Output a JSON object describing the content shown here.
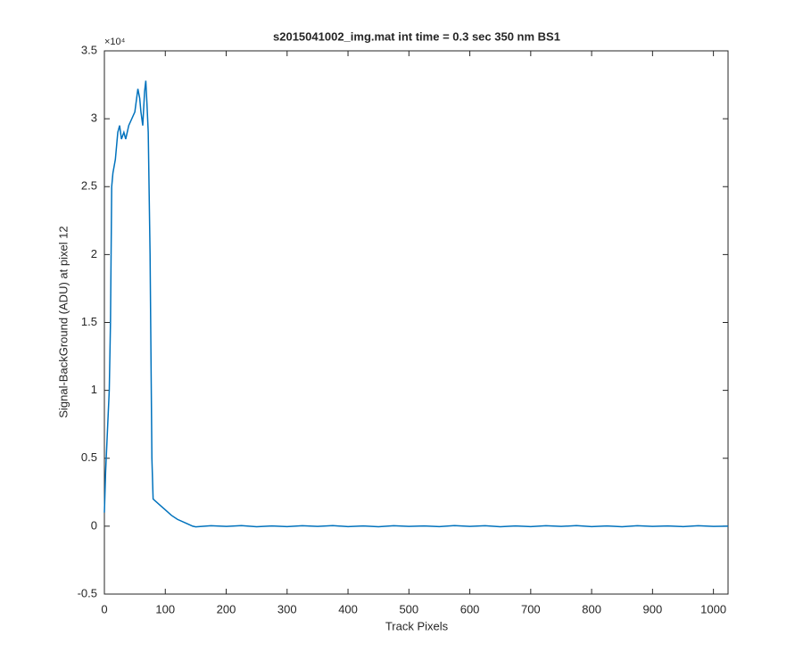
{
  "chart_data": {
    "type": "line",
    "title": "s2015041002_img.mat int time = 0.3 sec  350 nm BS1",
    "x_label": "Track Pixels",
    "y_label": "Signal-BackGround (ADU) at pixel 12",
    "y_exponent_label": "×10⁴",
    "x": [
      0,
      2,
      5,
      8,
      10,
      12,
      14,
      18,
      22,
      25,
      28,
      32,
      35,
      40,
      45,
      50,
      55,
      58,
      60,
      63,
      66,
      68,
      70,
      72,
      75,
      78,
      80,
      90,
      100,
      110,
      120,
      135,
      145,
      150,
      175,
      200,
      225,
      250,
      275,
      300,
      325,
      350,
      375,
      400,
      425,
      450,
      475,
      500,
      525,
      550,
      575,
      600,
      625,
      650,
      675,
      700,
      725,
      750,
      775,
      800,
      825,
      850,
      875,
      900,
      925,
      950,
      975,
      1000,
      1024
    ],
    "series": [
      {
        "name": "signal",
        "color": "#0072bd",
        "values": [
          0.1,
          0.4,
          0.7,
          1.0,
          1.5,
          2.5,
          2.6,
          2.7,
          2.9,
          2.95,
          2.85,
          2.9,
          2.85,
          2.95,
          3.0,
          3.05,
          3.22,
          3.15,
          3.05,
          2.95,
          3.2,
          3.28,
          3.1,
          2.9,
          2.0,
          0.5,
          0.2,
          0.16,
          0.12,
          0.08,
          0.05,
          0.02,
          0.0,
          -0.005,
          0.003,
          -0.002,
          0.004,
          -0.004,
          0.002,
          -0.003,
          0.003,
          -0.002,
          0.004,
          -0.003,
          0.002,
          -0.004,
          0.003,
          -0.002,
          0.002,
          -0.003,
          0.004,
          -0.002,
          0.003,
          -0.004,
          0.002,
          -0.003,
          0.003,
          -0.002,
          0.004,
          -0.003,
          0.002,
          -0.004,
          0.003,
          -0.002,
          0.002,
          -0.003,
          0.003,
          -0.002,
          0.0
        ]
      }
    ],
    "xlim": [
      0,
      1024
    ],
    "xticks": [
      0,
      100,
      200,
      300,
      400,
      500,
      600,
      700,
      800,
      900,
      1000
    ],
    "ylim": [
      -0.5,
      3.5
    ],
    "yticks": [
      -0.5,
      0,
      0.5,
      1,
      1.5,
      2,
      2.5,
      3,
      3.5
    ],
    "grid": false
  }
}
